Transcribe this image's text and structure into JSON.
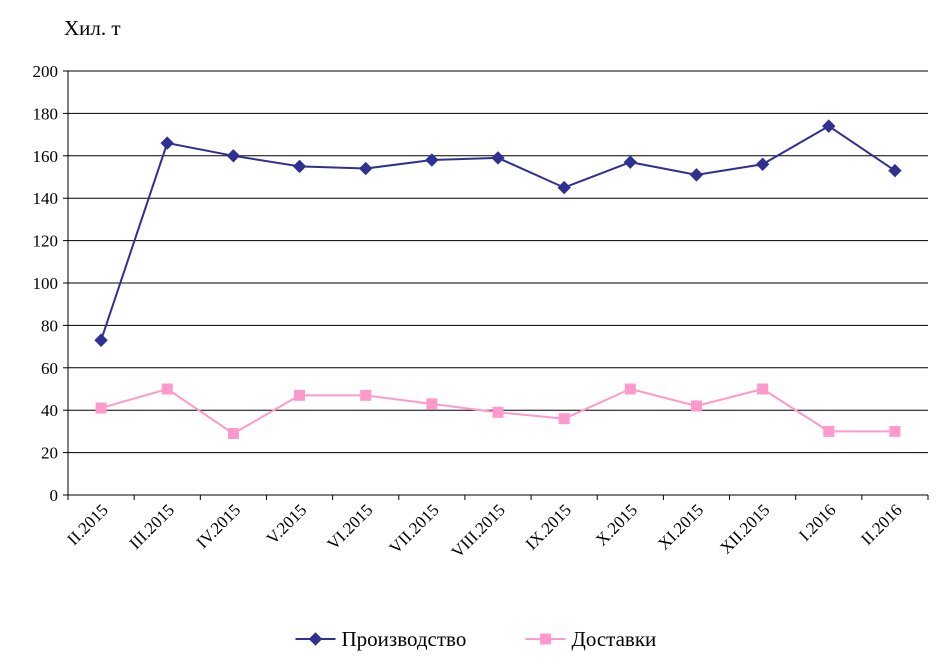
{
  "chart_data": {
    "type": "line",
    "title": "",
    "unit_label": "Хил. т",
    "xlabel": "",
    "ylabel": "",
    "categories": [
      "II.2015",
      "III.2015",
      "IV.2015",
      "V.2015",
      "VI.2015",
      "VII.2015",
      "VIII.2015",
      "IX.2015",
      "X.2015",
      "XI.2015",
      "XII.2015",
      "I.2016",
      "II.2016"
    ],
    "ylim": [
      0,
      200
    ],
    "yticks": [
      0,
      20,
      40,
      60,
      80,
      100,
      120,
      140,
      160,
      180,
      200
    ],
    "grid": "horizontal",
    "legend_position": "bottom",
    "series": [
      {
        "name": "Производство",
        "color": "#2e3192",
        "marker": "diamond",
        "values": [
          73,
          166,
          160,
          155,
          154,
          158,
          159,
          145,
          157,
          151,
          156,
          174,
          153
        ]
      },
      {
        "name": "Доставки",
        "color": "#ff99cc",
        "marker": "square",
        "values": [
          41,
          50,
          29,
          47,
          47,
          43,
          39,
          36,
          50,
          42,
          50,
          30,
          30
        ]
      }
    ]
  }
}
